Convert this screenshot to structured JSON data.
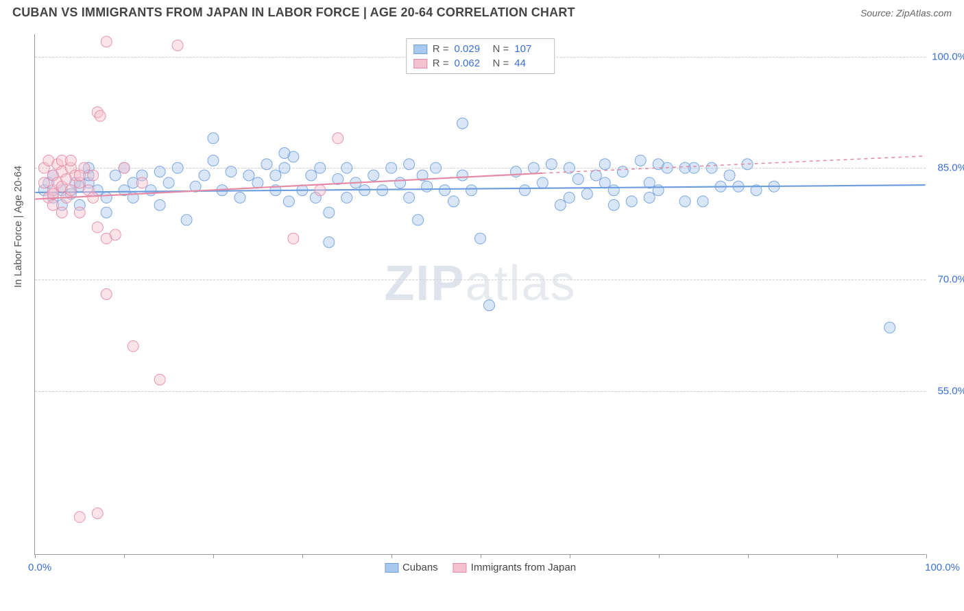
{
  "header": {
    "title": "CUBAN VS IMMIGRANTS FROM JAPAN IN LABOR FORCE | AGE 20-64 CORRELATION CHART",
    "source": "Source: ZipAtlas.com"
  },
  "axis": {
    "y_title": "In Labor Force | Age 20-64",
    "x_min_label": "0.0%",
    "x_max_label": "100.0%",
    "y_ticks": [
      {
        "v": 55.0,
        "label": "55.0%"
      },
      {
        "v": 70.0,
        "label": "70.0%"
      },
      {
        "v": 85.0,
        "label": "85.0%"
      },
      {
        "v": 100.0,
        "label": "100.0%"
      }
    ],
    "x_tick_positions": [
      0,
      10,
      20,
      30,
      40,
      50,
      60,
      70,
      80,
      90,
      100
    ]
  },
  "chart": {
    "type": "scatter",
    "xlim": [
      0,
      100
    ],
    "ylim": [
      33,
      103
    ],
    "background_color": "#ffffff",
    "grid_color": "#cccccc",
    "marker_radius": 8,
    "marker_fill_opacity": 0.45,
    "marker_stroke_opacity": 0.9,
    "line_width": 2.2,
    "watermark": "ZIPatlas"
  },
  "legend_top": {
    "rows": [
      {
        "color_fill": "#a9c8f0",
        "color_stroke": "#6f9ede",
        "r_label": "R =",
        "r": "0.029",
        "n_label": "N =",
        "n": "107"
      },
      {
        "color_fill": "#f5c0cf",
        "color_stroke": "#e48aa4",
        "r_label": "R =",
        "r": "0.062",
        "n_label": "N =",
        "n": "44"
      }
    ]
  },
  "legend_bottom": {
    "items": [
      {
        "label": "Cubans",
        "fill": "#a9c8f0",
        "stroke": "#6f9ede"
      },
      {
        "label": "Immigrants from Japan",
        "fill": "#f5c0cf",
        "stroke": "#e48aa4"
      }
    ]
  },
  "series": [
    {
      "name": "Cubans",
      "color_fill": "#a9c8f0",
      "color_stroke": "#6f9ede",
      "trend": {
        "x1": 0,
        "y1": 81.7,
        "x2": 100,
        "y2": 82.7,
        "dash_from_x": 100
      },
      "points": [
        [
          1,
          82
        ],
        [
          1.5,
          83
        ],
        [
          2,
          81
        ],
        [
          2,
          84
        ],
        [
          3,
          82
        ],
        [
          3,
          80
        ],
        [
          4,
          81.5
        ],
        [
          4.5,
          83
        ],
        [
          5,
          82.5
        ],
        [
          5,
          80
        ],
        [
          6,
          83
        ],
        [
          6,
          85
        ],
        [
          7,
          82
        ],
        [
          8,
          79
        ],
        [
          8,
          81
        ],
        [
          9,
          84
        ],
        [
          10,
          82
        ],
        [
          10,
          85
        ],
        [
          11,
          83
        ],
        [
          11,
          81
        ],
        [
          12,
          84
        ],
        [
          13,
          82
        ],
        [
          14,
          84.5
        ],
        [
          14,
          80
        ],
        [
          15,
          83
        ],
        [
          16,
          85
        ],
        [
          17,
          78
        ],
        [
          18,
          82.5
        ],
        [
          19,
          84
        ],
        [
          20,
          86
        ],
        [
          21,
          82
        ],
        [
          22,
          84.5
        ],
        [
          23,
          81
        ],
        [
          24,
          84
        ],
        [
          25,
          83
        ],
        [
          26,
          85.5
        ],
        [
          27,
          82
        ],
        [
          27,
          84
        ],
        [
          28,
          85
        ],
        [
          28.5,
          80.5
        ],
        [
          29,
          86.5
        ],
        [
          30,
          82
        ],
        [
          31,
          84
        ],
        [
          31.5,
          81
        ],
        [
          32,
          85
        ],
        [
          33,
          79
        ],
        [
          34,
          83.5
        ],
        [
          35,
          85
        ],
        [
          35,
          81
        ],
        [
          36,
          83
        ],
        [
          37,
          82
        ],
        [
          38,
          84
        ],
        [
          39,
          82
        ],
        [
          40,
          85
        ],
        [
          41,
          83
        ],
        [
          42,
          81
        ],
        [
          43,
          78
        ],
        [
          43.5,
          84
        ],
        [
          44,
          82.5
        ],
        [
          45,
          85
        ],
        [
          46,
          82
        ],
        [
          47,
          80.5
        ],
        [
          48,
          84
        ],
        [
          49,
          82
        ],
        [
          50,
          75.5
        ],
        [
          51,
          66.5
        ],
        [
          54,
          84.5
        ],
        [
          55,
          82
        ],
        [
          56,
          85
        ],
        [
          57,
          83
        ],
        [
          58,
          85.5
        ],
        [
          59,
          80
        ],
        [
          60,
          81
        ],
        [
          61,
          83.5
        ],
        [
          62,
          81.5
        ],
        [
          63,
          84
        ],
        [
          64,
          85.5
        ],
        [
          64,
          83
        ],
        [
          65,
          82
        ],
        [
          66,
          84.5
        ],
        [
          67,
          80.5
        ],
        [
          68,
          86
        ],
        [
          69,
          83
        ],
        [
          70,
          85.5
        ],
        [
          70,
          82
        ],
        [
          71,
          85
        ],
        [
          73,
          80.5
        ],
        [
          74,
          85
        ],
        [
          75,
          80.5
        ],
        [
          76,
          85
        ],
        [
          77,
          82.5
        ],
        [
          78,
          84
        ],
        [
          79,
          82.5
        ],
        [
          80,
          85.5
        ],
        [
          81,
          82
        ],
        [
          83,
          82.5
        ],
        [
          96,
          63.5
        ],
        [
          48,
          91
        ],
        [
          28,
          87
        ],
        [
          20,
          89
        ],
        [
          6,
          84
        ],
        [
          33,
          75
        ],
        [
          42,
          85.5
        ],
        [
          60,
          85
        ],
        [
          69,
          81
        ],
        [
          73,
          85
        ],
        [
          65,
          80
        ]
      ]
    },
    {
      "name": "Immigrants from Japan",
      "color_fill": "#f5c0cf",
      "color_stroke": "#e48aa4",
      "trend": {
        "x1": 0,
        "y1": 80.8,
        "x2": 57,
        "y2": 84.3,
        "dash_from_x": 57,
        "x3": 100,
        "y3": 86.6
      },
      "points": [
        [
          1,
          83
        ],
        [
          1,
          85
        ],
        [
          1.5,
          81
        ],
        [
          1.5,
          86
        ],
        [
          2,
          84
        ],
        [
          2,
          82
        ],
        [
          2,
          80
        ],
        [
          2.5,
          85.5
        ],
        [
          2.5,
          83
        ],
        [
          3,
          84.5
        ],
        [
          3,
          82.5
        ],
        [
          3,
          86
        ],
        [
          3.5,
          81
        ],
        [
          3.5,
          83.5
        ],
        [
          4,
          85
        ],
        [
          4,
          82
        ],
        [
          4.5,
          84
        ],
        [
          5,
          83
        ],
        [
          5,
          79
        ],
        [
          5.5,
          85
        ],
        [
          6,
          82
        ],
        [
          6.5,
          84
        ],
        [
          6.5,
          81
        ],
        [
          7,
          77
        ],
        [
          7,
          92.5
        ],
        [
          7.3,
          92
        ],
        [
          8,
          75.5
        ],
        [
          8,
          68
        ],
        [
          8,
          102
        ],
        [
          9,
          76
        ],
        [
          10,
          85
        ],
        [
          11,
          61
        ],
        [
          14,
          56.5
        ],
        [
          16,
          101.5
        ],
        [
          5,
          38
        ],
        [
          7,
          38.5
        ],
        [
          34,
          89
        ],
        [
          32,
          82
        ],
        [
          29,
          75.5
        ],
        [
          12,
          83
        ],
        [
          3,
          79
        ],
        [
          4,
          86
        ],
        [
          2,
          81.5
        ],
        [
          5,
          84
        ]
      ]
    }
  ]
}
